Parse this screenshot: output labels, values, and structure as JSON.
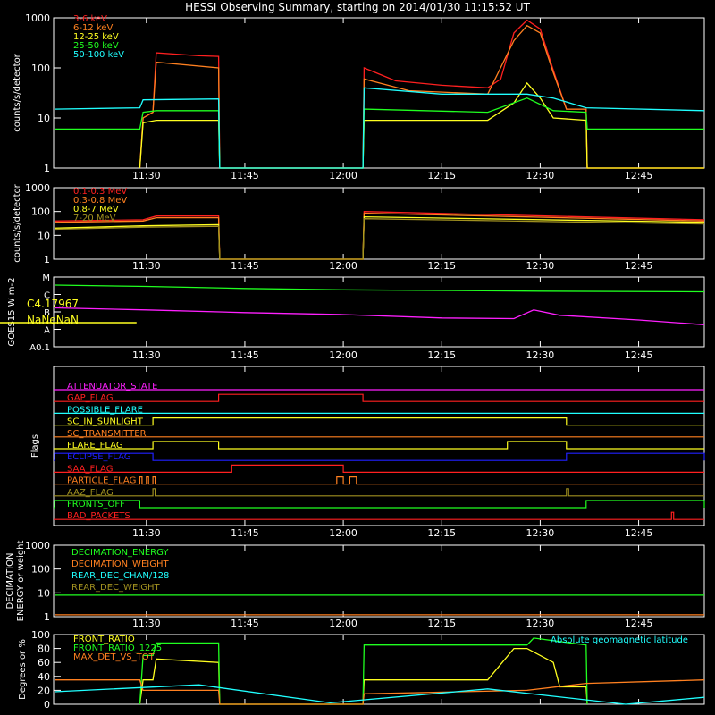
{
  "title": "HESSI Observing Summary, starting on 2014/01/30 11:15:52 UT",
  "x_ticks": [
    "11:30",
    "11:45",
    "12:00",
    "12:15",
    "12:30",
    "12:45"
  ],
  "colors": {
    "background": "#000000",
    "axes": "#ffffff",
    "red": "#ff2020",
    "orange": "#ff8020",
    "yellow": "#ffff20",
    "green": "#20ff20",
    "cyan": "#20ffff",
    "magenta": "#ff20ff",
    "blue": "#2020ff",
    "olive": "#a09020"
  },
  "chart_data": [
    {
      "type": "line",
      "ylabel": "counts/s/detector",
      "yscale": "log",
      "ylim": [
        1,
        1000
      ],
      "y_ticks": [
        "1",
        "10",
        "100",
        "1000"
      ],
      "x_range": [
        "11:15:52",
        "12:55"
      ],
      "series": [
        {
          "name": "3-6 keV",
          "color": "#ff2020",
          "x": [
            "11:29",
            "11:29:30",
            "11:31",
            "11:31:30",
            "11:38",
            "11:41",
            "11:41:10",
            "12:03",
            "12:03:10",
            "12:08",
            "12:15",
            "12:22",
            "12:24",
            "12:26",
            "12:28",
            "12:30",
            "12:32",
            "12:34",
            "12:34:10",
            "12:37",
            "12:37:10",
            "12:55"
          ],
          "values": [
            0,
            10,
            13,
            200,
            175,
            170,
            0,
            0,
            100,
            55,
            45,
            40,
            60,
            500,
            900,
            600,
            90,
            15,
            15,
            15,
            0,
            0
          ]
        },
        {
          "name": "6-12 keV",
          "color": "#ff8020",
          "x": [
            "11:29",
            "11:29:30",
            "11:31",
            "11:31:30",
            "11:41",
            "11:41:10",
            "12:03",
            "12:03:10",
            "12:10",
            "12:22",
            "12:26",
            "12:28",
            "12:30",
            "12:32",
            "12:34",
            "12:37",
            "12:37:10",
            "12:55"
          ],
          "values": [
            0,
            10,
            13,
            130,
            100,
            0,
            0,
            60,
            35,
            30,
            350,
            700,
            500,
            80,
            15,
            15,
            0,
            0
          ]
        },
        {
          "name": "12-25 keV",
          "color": "#ffff20",
          "x": [
            "11:29",
            "11:29:30",
            "11:31:30",
            "11:41",
            "11:41:10",
            "12:03",
            "12:03:10",
            "12:22",
            "12:26",
            "12:28",
            "12:30",
            "12:32",
            "12:37",
            "12:37:10",
            "12:55"
          ],
          "values": [
            0,
            8,
            9,
            9,
            0,
            0,
            9,
            9,
            20,
            50,
            25,
            10,
            9,
            0,
            0
          ]
        },
        {
          "name": "25-50 keV",
          "color": "#20ff20",
          "x": [
            "11:16",
            "11:29",
            "11:29:30",
            "11:31:30",
            "11:41",
            "11:41:10",
            "12:03",
            "12:03:10",
            "12:22",
            "12:28",
            "12:32",
            "12:37",
            "12:37:10",
            "12:55"
          ],
          "values": [
            6,
            6,
            13,
            14,
            14,
            0,
            0,
            15,
            13,
            25,
            14,
            13,
            6,
            6
          ]
        },
        {
          "name": "50-100 keV",
          "color": "#20ffff",
          "x": [
            "11:16",
            "11:29",
            "11:29:30",
            "11:41",
            "11:41:10",
            "12:03",
            "12:03:10",
            "12:15",
            "12:28",
            "12:32",
            "12:37",
            "12:55"
          ],
          "values": [
            15,
            16,
            23,
            24,
            0,
            0,
            40,
            30,
            30,
            25,
            16,
            14
          ]
        }
      ]
    },
    {
      "type": "line",
      "ylabel": "counts/s/detector",
      "yscale": "log",
      "ylim": [
        1,
        1000
      ],
      "y_ticks": [
        "1",
        "10",
        "100",
        "1000"
      ],
      "series": [
        {
          "name": "0.1-0.3 MeV",
          "color": "#ff2020",
          "x": [
            "11:16",
            "11:29:30",
            "11:31:30",
            "11:41",
            "11:41:10",
            "12:03",
            "12:03:10",
            "12:55"
          ],
          "values": [
            40,
            45,
            65,
            65,
            0,
            0,
            100,
            45
          ]
        },
        {
          "name": "0.3-0.8 MeV",
          "color": "#ff8020",
          "x": [
            "11:16",
            "11:29:30",
            "11:31:30",
            "11:41",
            "11:41:10",
            "12:03",
            "12:03:10",
            "12:55"
          ],
          "values": [
            35,
            40,
            55,
            55,
            0,
            0,
            85,
            40
          ]
        },
        {
          "name": "0.8-7 MeV",
          "color": "#ffff20",
          "x": [
            "11:16",
            "11:29:30",
            "11:41",
            "11:41:10",
            "12:03",
            "12:03:10",
            "12:55"
          ],
          "values": [
            20,
            25,
            28,
            0,
            0,
            60,
            35
          ]
        },
        {
          "name": "7-20 MeV",
          "color": "#a09020",
          "x": [
            "11:16",
            "11:29:30",
            "11:41",
            "11:41:10",
            "12:03",
            "12:03:10",
            "12:55"
          ],
          "values": [
            18,
            22,
            24,
            0,
            0,
            50,
            30
          ]
        }
      ]
    },
    {
      "type": "line",
      "ylabel": "GOES15 W m-2",
      "y_ticks": [
        "A0.1",
        "A",
        "B",
        "C",
        "M"
      ],
      "annotations": [
        "C4.17967",
        "NaNeNaN"
      ],
      "series": [
        {
          "color": "#20ff20",
          "x": [
            "11:16",
            "11:30",
            "11:45",
            "12:00",
            "12:30",
            "12:55"
          ],
          "values": [
            4.6,
            4.5,
            4.35,
            4.25,
            4.15,
            4.1
          ]
        },
        {
          "color": "#ff20ff",
          "x": [
            "11:16",
            "11:30",
            "11:45",
            "12:00",
            "12:15",
            "12:26",
            "12:29",
            "12:33",
            "12:45",
            "12:55"
          ],
          "values": [
            2.9,
            2.75,
            2.55,
            2.4,
            2.15,
            2.1,
            2.75,
            2.35,
            2.0,
            1.65
          ]
        },
        {
          "color": "#ffff20",
          "x": [
            "11:16",
            "11:28:30"
          ],
          "values": [
            1.8,
            1.8
          ]
        }
      ]
    },
    {
      "type": "line",
      "ylabel": "Flags",
      "flags": [
        {
          "name": "ATTENUATOR_STATE",
          "color": "#ff20ff",
          "on": []
        },
        {
          "name": "GAP_FLAG",
          "color": "#ff2020",
          "on": [
            [
              "11:41",
              "12:03"
            ]
          ]
        },
        {
          "name": "POSSIBLE_FLARE",
          "color": "#20ffff",
          "on": []
        },
        {
          "name": "SC_IN_SUNLIGHT",
          "color": "#ffff20",
          "on": [
            [
              "11:31",
              "12:34"
            ]
          ]
        },
        {
          "name": "SC_TRANSMITTER",
          "color": "#ff8020",
          "on": []
        },
        {
          "name": "FLARE_FLAG",
          "color": "#ffff20",
          "on": [
            [
              "11:31",
              "11:41"
            ],
            [
              "12:25",
              "12:34"
            ]
          ]
        },
        {
          "name": "ECLIPSE_FLAG",
          "color": "#2020ff",
          "on": [
            [
              "11:16",
              "11:31"
            ],
            [
              "12:34",
              "12:55"
            ]
          ]
        },
        {
          "name": "SAA_FLAG",
          "color": "#ff2020",
          "on": [
            [
              "11:43",
              "12:00"
            ]
          ]
        },
        {
          "name": "PARTICLE_FLAG",
          "color": "#ff8020",
          "on": [
            [
              "11:29",
              "11:29:20"
            ],
            [
              "11:30",
              "11:30:20"
            ],
            [
              "11:31",
              "11:31:20"
            ],
            [
              "11:59",
              "12:00"
            ],
            [
              "12:01",
              "12:02"
            ]
          ]
        },
        {
          "name": "AAZ_FLAG",
          "color": "#a09020",
          "on": [
            [
              "11:31",
              "11:31:20"
            ],
            [
              "12:34",
              "12:34:20"
            ]
          ]
        },
        {
          "name": "FRONTS_OFF",
          "color": "#20ff20",
          "on": [
            [
              "11:16",
              "11:29"
            ],
            [
              "12:37",
              "12:55"
            ]
          ]
        },
        {
          "name": "BAD_PACKETS",
          "color": "#ff2020",
          "on": [
            [
              "12:50",
              "12:50:20"
            ]
          ]
        }
      ]
    },
    {
      "type": "line",
      "ylabel": "DECIMATION ENERGY or weight",
      "yscale": "log",
      "ylim": [
        1,
        1000
      ],
      "y_ticks": [
        "1",
        "10",
        "100",
        "1000"
      ],
      "series": [
        {
          "name": "DECIMATION_ENERGY",
          "color": "#20ff20",
          "x": [
            "11:16",
            "12:55"
          ],
          "values": [
            8,
            8
          ]
        },
        {
          "name": "DECIMATION_WEIGHT",
          "color": "#ff8020",
          "x": [
            "11:16",
            "12:55"
          ],
          "values": [
            1.2,
            1.2
          ]
        },
        {
          "name": "REAR_DEC_CHAN/128",
          "color": "#20ffff",
          "x": [],
          "values": []
        },
        {
          "name": "REAR_DEC_WEIGHT",
          "color": "#a09020",
          "x": [],
          "values": []
        }
      ]
    },
    {
      "type": "line",
      "ylabel": "Degrees or %",
      "ylim": [
        0,
        100
      ],
      "y_ticks": [
        "0",
        "20",
        "40",
        "60",
        "80",
        "100"
      ],
      "annotations": [
        "Absolute geomagnetic latitude"
      ],
      "series": [
        {
          "name": "FRONT_RATIO",
          "color": "#ffff20",
          "x": [
            "11:29",
            "11:29:30",
            "11:31",
            "11:31:30",
            "11:41",
            "11:41:10",
            "12:03",
            "12:03:10",
            "12:22",
            "12:26",
            "12:28",
            "12:32",
            "12:33",
            "12:34",
            "12:37",
            "12:37:10"
          ],
          "values": [
            0,
            35,
            35,
            65,
            60,
            0,
            0,
            35,
            35,
            80,
            80,
            60,
            25,
            25,
            25,
            0
          ]
        },
        {
          "name": "FRONT_RATIO_1225",
          "color": "#20ff20",
          "x": [
            "11:29",
            "11:29:30",
            "11:31",
            "11:31:30",
            "11:41",
            "11:41:10",
            "12:03",
            "12:03:10",
            "12:28",
            "12:29",
            "12:37",
            "12:37:10"
          ],
          "values": [
            0,
            70,
            70,
            88,
            88,
            0,
            0,
            85,
            85,
            95,
            85,
            0
          ]
        },
        {
          "name": "MAX_DET_VS_TOT",
          "color": "#ff8020",
          "x": [
            "11:16",
            "11:29",
            "11:29:30",
            "11:41",
            "11:41:10",
            "12:03",
            "12:03:10",
            "12:28",
            "12:37",
            "12:55"
          ],
          "values": [
            35,
            35,
            20,
            20,
            0,
            0,
            15,
            20,
            30,
            35
          ]
        },
        {
          "name": "Absolute geomagnetic latitude",
          "color": "#20ffff",
          "x": [
            "11:16",
            "11:38",
            "11:58",
            "12:22",
            "12:43",
            "12:55"
          ],
          "values": [
            18,
            28,
            2,
            22,
            0,
            10
          ]
        }
      ]
    }
  ]
}
